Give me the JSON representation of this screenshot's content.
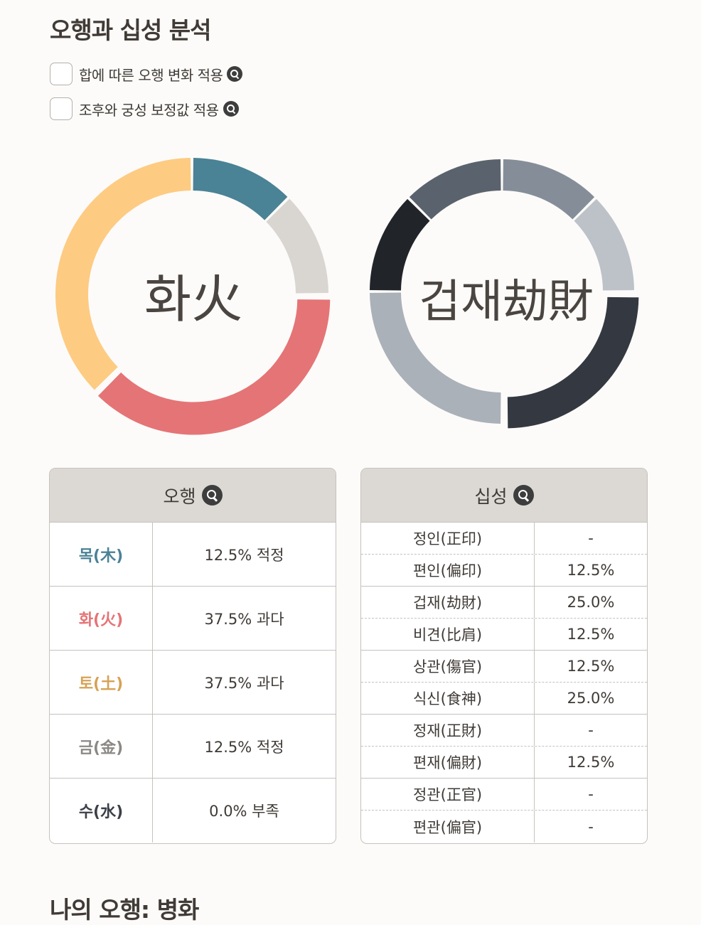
{
  "title": "오행과 십성 분석",
  "options": [
    {
      "label": "합에 따른 오행 변화 적용",
      "checked": false
    },
    {
      "label": "조후와 궁성 보정값 적용",
      "checked": false
    }
  ],
  "charts": {
    "ohaeng_center": "화火",
    "sipseong_center": "겁재劫財"
  },
  "chart_data": [
    {
      "type": "pie",
      "categories": [
        "목(木)",
        "금(金)",
        "화(火)",
        "토(土)",
        "수(水)"
      ],
      "values": [
        12.5,
        12.5,
        37.5,
        37.5,
        0.0
      ],
      "colors": [
        "#4a8296",
        "#d9d6d2",
        "#e57476",
        "#fdcb82",
        "#3b4049"
      ]
    },
    {
      "type": "pie",
      "categories": [
        "편인(偏印)",
        "비견(比肩)",
        "겁재(劫財)",
        "식신(食神)",
        "상관(傷官)",
        "편재(偏財)"
      ],
      "values": [
        12.5,
        12.5,
        25.0,
        25.0,
        12.5,
        12.5
      ],
      "colors": [
        "#858e98",
        "#bdc2c9",
        "#343841",
        "#aab1b8",
        "#212429",
        "#5a636d"
      ]
    }
  ],
  "ohaeng_table": {
    "header": "오행",
    "rows": [
      {
        "name": "목(木)",
        "value": "12.5% 적정",
        "color": "#4a8296"
      },
      {
        "name": "화(火)",
        "value": "37.5% 과다",
        "color": "#e57476"
      },
      {
        "name": "토(土)",
        "value": "37.5% 과다",
        "color": "#d6a255"
      },
      {
        "name": "금(金)",
        "value": "12.5% 적정",
        "color": "#8c8884"
      },
      {
        "name": "수(水)",
        "value": "0.0% 부족",
        "color": "#3b4049"
      }
    ]
  },
  "sipseong_table": {
    "header": "십성",
    "rows": [
      {
        "name": "정인(正印)",
        "value": "-"
      },
      {
        "name": "편인(偏印)",
        "value": "12.5%"
      },
      {
        "name": "겁재(劫財)",
        "value": "25.0%"
      },
      {
        "name": "비견(比肩)",
        "value": "12.5%"
      },
      {
        "name": "상관(傷官)",
        "value": "12.5%"
      },
      {
        "name": "식신(食神)",
        "value": "25.0%"
      },
      {
        "name": "정재(正財)",
        "value": "-"
      },
      {
        "name": "편재(偏財)",
        "value": "12.5%"
      },
      {
        "name": "정관(正官)",
        "value": "-"
      },
      {
        "name": "편관(偏官)",
        "value": "-"
      }
    ]
  },
  "bottom_title": "나의 오행: 병화"
}
